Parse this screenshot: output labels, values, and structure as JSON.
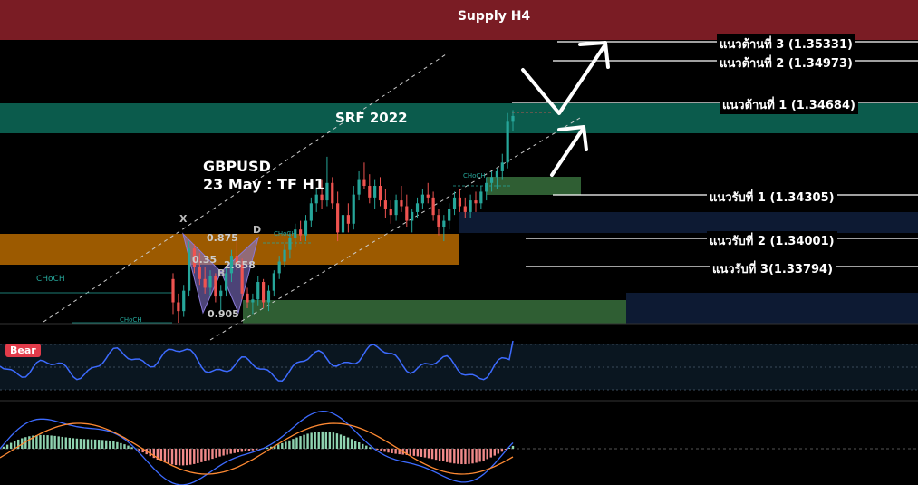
{
  "chart_data": {
    "type": "candlestick",
    "symbol": "GBPUSD",
    "subtitle": "23 May : TF H1",
    "zones": {
      "supply_h4": "Supply H4",
      "srf": "SRF 2022"
    },
    "resistance_levels": [
      {
        "label": "แนวต้านที่ 3 (1.35331)",
        "value": 1.35331
      },
      {
        "label": "แนวต้านที่ 2 (1.34973)",
        "value": 1.34973
      },
      {
        "label": "แนวต้านที่ 1 (1.34684)",
        "value": 1.34684
      }
    ],
    "support_levels": [
      {
        "label": "แนวรับที่ 1 (1.34305)",
        "value": 1.34305
      },
      {
        "label": "แนวรับที่ 2 (1.34001)",
        "value": 1.34001
      },
      {
        "label": "แนวรับที่ 3(1.33794)",
        "value": 1.33794
      }
    ],
    "harmonic_points": [
      "X",
      "B",
      "D"
    ],
    "harmonic_ratios": [
      "0.875",
      "0.35",
      "2.658",
      "0.905"
    ],
    "choch_labels": [
      "CHoCH",
      "CHoCH",
      "CHoCH",
      "CHoCH"
    ],
    "rsi_badge": "Bear",
    "colors": {
      "supply": "#7a1c24",
      "srf": "#0b5b4c",
      "orange_zone": "#9c5a00",
      "green_zone": "#2f5e33",
      "navy_zone": "#0d1a33",
      "bull": "#26a69a",
      "bear": "#ef5350",
      "rsi_line": "#3d6bff",
      "macd_line": "#3d6bff",
      "signal_line": "#ff8a33",
      "harmonic": "#8a7ad8"
    },
    "candles": [
      [
        1.3372,
        1.3376,
        1.3348,
        1.3356
      ],
      [
        1.3356,
        1.3362,
        1.3342,
        1.335
      ],
      [
        1.335,
        1.3368,
        1.3346,
        1.3364
      ],
      [
        1.3364,
        1.3398,
        1.336,
        1.3393
      ],
      [
        1.3393,
        1.3396,
        1.3376,
        1.338
      ],
      [
        1.338,
        1.339,
        1.3368,
        1.3372
      ],
      [
        1.3372,
        1.338,
        1.3362,
        1.3366
      ],
      [
        1.3366,
        1.3378,
        1.336,
        1.3374
      ],
      [
        1.3374,
        1.3376,
        1.3356,
        1.336
      ],
      [
        1.336,
        1.3368,
        1.335,
        1.3364
      ],
      [
        1.3364,
        1.338,
        1.336,
        1.3376
      ],
      [
        1.3376,
        1.3392,
        1.337,
        1.3388
      ],
      [
        1.3388,
        1.3398,
        1.3378,
        1.3382
      ],
      [
        1.3382,
        1.3386,
        1.3358,
        1.3362
      ],
      [
        1.3362,
        1.3366,
        1.3352,
        1.3356
      ],
      [
        1.3356,
        1.3362,
        1.3348,
        1.3358
      ],
      [
        1.3358,
        1.3374,
        1.3354,
        1.337
      ],
      [
        1.337,
        1.3372,
        1.3352,
        1.3356
      ],
      [
        1.3356,
        1.3368,
        1.335,
        1.3364
      ],
      [
        1.3364,
        1.3378,
        1.336,
        1.3376
      ],
      [
        1.3376,
        1.3388,
        1.3372,
        1.3384
      ],
      [
        1.3384,
        1.3396,
        1.338,
        1.3392
      ],
      [
        1.3392,
        1.3404,
        1.3386,
        1.34
      ],
      [
        1.34,
        1.341,
        1.3394,
        1.3406
      ],
      [
        1.3406,
        1.3412,
        1.3398,
        1.3402
      ],
      [
        1.3402,
        1.3416,
        1.3398,
        1.3412
      ],
      [
        1.3412,
        1.3428,
        1.3408,
        1.3424
      ],
      [
        1.3424,
        1.3434,
        1.3418,
        1.343
      ],
      [
        1.343,
        1.344,
        1.342,
        1.3426
      ],
      [
        1.3426,
        1.3456,
        1.3422,
        1.3438
      ],
      [
        1.3438,
        1.3442,
        1.342,
        1.3424
      ],
      [
        1.3424,
        1.3432,
        1.3398,
        1.3404
      ],
      [
        1.3404,
        1.342,
        1.34,
        1.3416
      ],
      [
        1.3416,
        1.3424,
        1.3404,
        1.341
      ],
      [
        1.341,
        1.3436,
        1.3406,
        1.343
      ],
      [
        1.343,
        1.3446,
        1.3426,
        1.344
      ],
      [
        1.344,
        1.3452,
        1.3434,
        1.3436
      ],
      [
        1.3436,
        1.3444,
        1.3424,
        1.3428
      ],
      [
        1.3428,
        1.344,
        1.342,
        1.3436
      ],
      [
        1.3436,
        1.3442,
        1.3422,
        1.3426
      ],
      [
        1.3426,
        1.3434,
        1.3414,
        1.342
      ],
      [
        1.342,
        1.3426,
        1.341,
        1.3416
      ],
      [
        1.3416,
        1.343,
        1.3412,
        1.3426
      ],
      [
        1.3426,
        1.3436,
        1.3418,
        1.3422
      ],
      [
        1.3422,
        1.343,
        1.3408,
        1.3412
      ],
      [
        1.3412,
        1.342,
        1.3404,
        1.3418
      ],
      [
        1.3418,
        1.3428,
        1.3414,
        1.3424
      ],
      [
        1.3424,
        1.3434,
        1.342,
        1.343
      ],
      [
        1.343,
        1.3438,
        1.3424,
        1.3428
      ],
      [
        1.3428,
        1.3432,
        1.3412,
        1.3416
      ],
      [
        1.3416,
        1.342,
        1.3402,
        1.3408
      ],
      [
        1.3408,
        1.3416,
        1.3398,
        1.3412
      ],
      [
        1.3412,
        1.3424,
        1.3406,
        1.342
      ],
      [
        1.342,
        1.3432,
        1.3416,
        1.3428
      ],
      [
        1.3428,
        1.3434,
        1.3418,
        1.3422
      ],
      [
        1.3422,
        1.3428,
        1.3414,
        1.3418
      ],
      [
        1.3418,
        1.343,
        1.3414,
        1.3426
      ],
      [
        1.3426,
        1.3432,
        1.3418,
        1.3424
      ],
      [
        1.3424,
        1.3436,
        1.342,
        1.3432
      ],
      [
        1.3432,
        1.3442,
        1.3426,
        1.3438
      ],
      [
        1.3438,
        1.3446,
        1.3432,
        1.3442
      ],
      [
        1.3442,
        1.3448,
        1.3434,
        1.3446
      ],
      [
        1.3446,
        1.3458,
        1.344,
        1.3452
      ],
      [
        1.3452,
        1.3486,
        1.3448,
        1.348
      ],
      [
        1.348,
        1.3488,
        1.3474,
        1.3484
      ]
    ]
  }
}
